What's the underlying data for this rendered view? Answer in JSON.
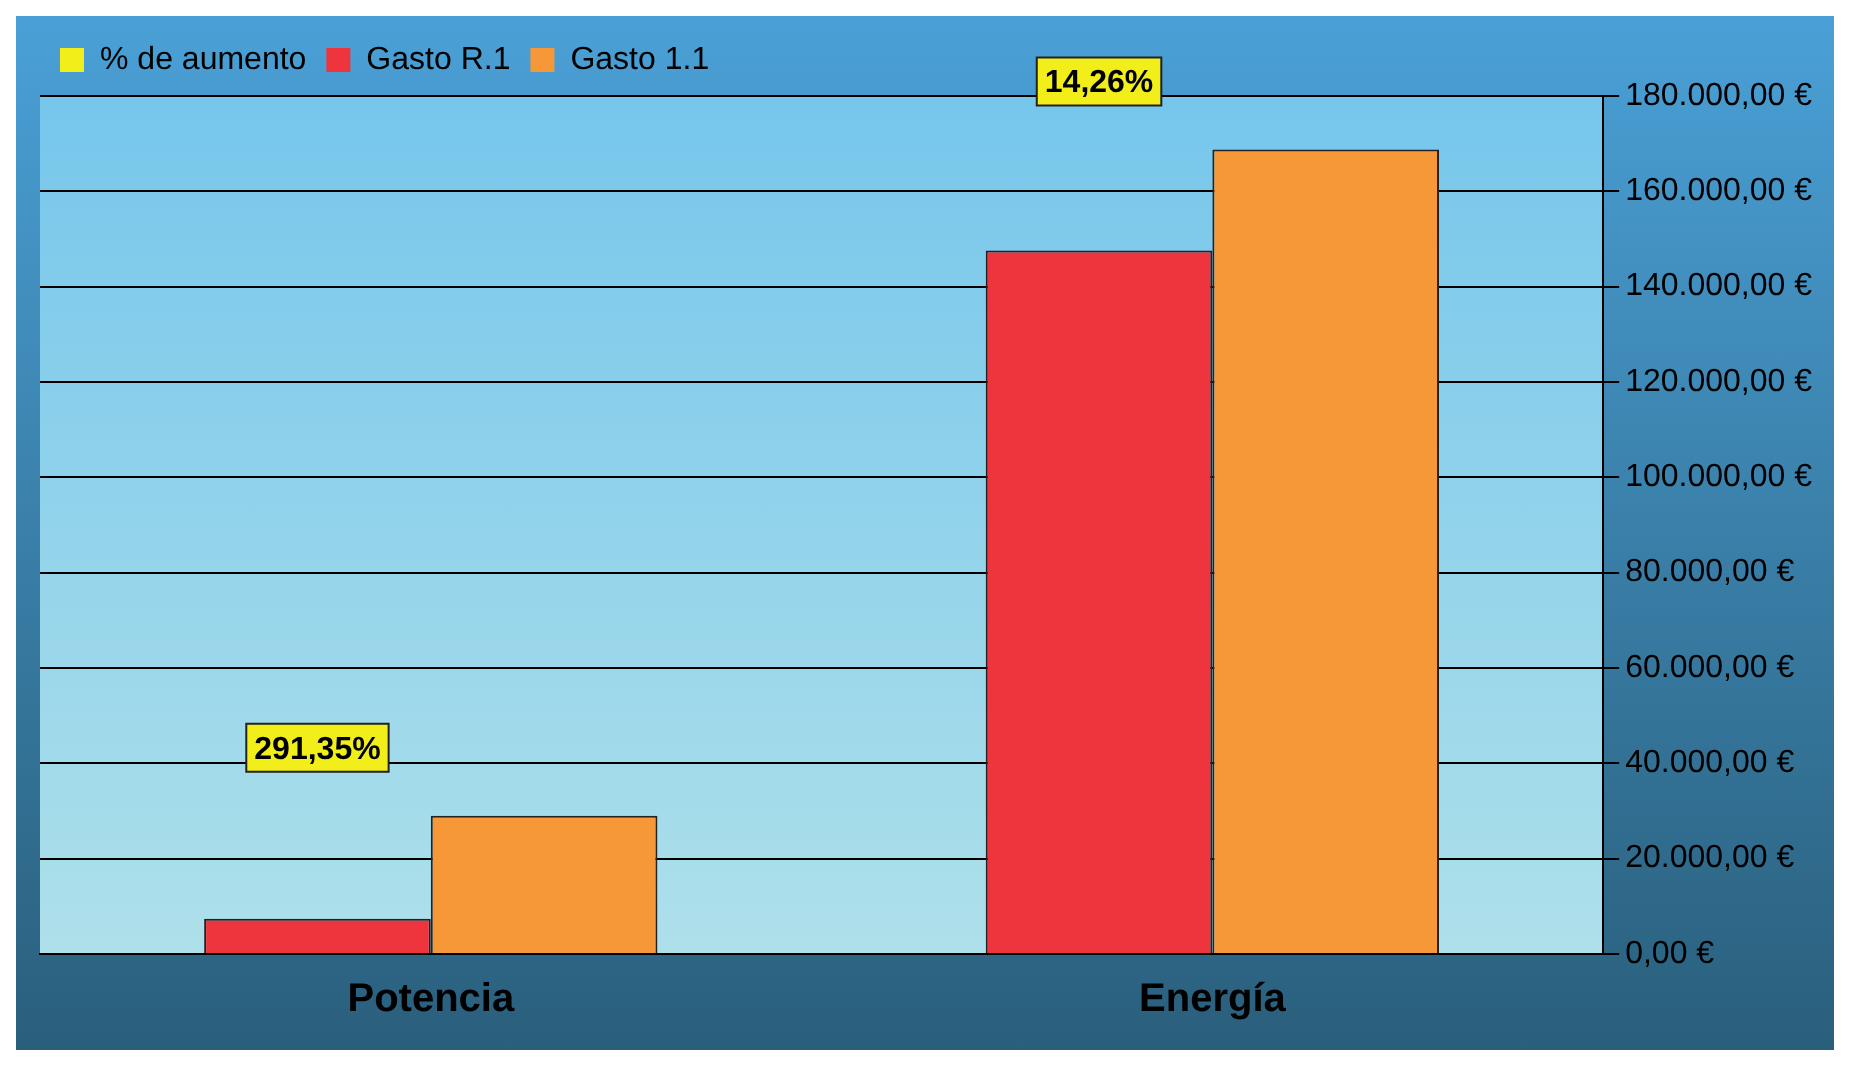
{
  "chart_data": {
    "type": "bar",
    "categories": [
      "Potencia",
      "Energía"
    ],
    "series": [
      {
        "name": "% de aumento",
        "color": "#f2ee1a",
        "values": [
          null,
          null
        ]
      },
      {
        "name": "Gasto R.1",
        "color": "#ee353e",
        "values": [
          7400,
          147600
        ]
      },
      {
        "name": "Gasto 1.1",
        "color": "#f79838",
        "values": [
          29000,
          168800
        ]
      }
    ],
    "ylim": [
      0,
      180000
    ],
    "yticks": [
      {
        "value": 0,
        "label": "0,00 €"
      },
      {
        "value": 20000,
        "label": "20.000,00 €"
      },
      {
        "value": 40000,
        "label": "40.000,00 €"
      },
      {
        "value": 60000,
        "label": "60.000,00 €"
      },
      {
        "value": 80000,
        "label": "80.000,00 €"
      },
      {
        "value": 100000,
        "label": "100.000,00 €"
      },
      {
        "value": 120000,
        "label": "120.000,00 €"
      },
      {
        "value": 140000,
        "label": "140.000,00 €"
      },
      {
        "value": 160000,
        "label": "160.000,00 €"
      },
      {
        "value": 180000,
        "label": "180.000,00 €"
      }
    ],
    "annotations": [
      "291,35%",
      "14,26%"
    ],
    "grid": "y",
    "legend": "top left"
  }
}
